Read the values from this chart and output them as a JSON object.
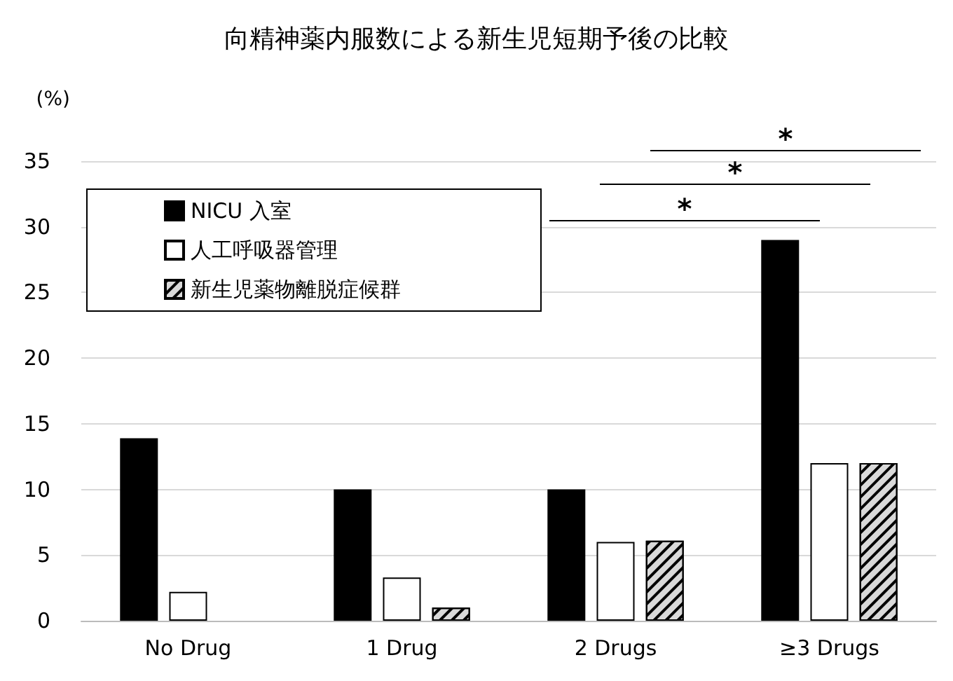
{
  "chart_data": {
    "type": "bar",
    "title": "向精神薬内服数による新生児短期予後の比較",
    "ylabel": "(%)",
    "categories": [
      "No Drug",
      "1 Drug",
      "2 Drugs",
      "≥3 Drugs"
    ],
    "series": [
      {
        "name": "NICU 入室",
        "color": "#000000",
        "values": [
          13.9,
          10,
          10,
          29.0
        ]
      },
      {
        "name": "人工呼吸器管理",
        "color": "#ffffff",
        "values": [
          2.2,
          3.3,
          6.0,
          12.0
        ]
      },
      {
        "name": "新生児薬物離脱症候群",
        "color": "#d9d9d9",
        "values": [
          null,
          1.0,
          6.1,
          12.0
        ]
      }
    ],
    "ylim": [
      0,
      35
    ],
    "yticks": [
      0,
      5,
      10,
      15,
      20,
      25,
      30,
      35
    ],
    "grid": "y",
    "legend": "top left",
    "annotations": [
      "*",
      "*",
      "*"
    ]
  }
}
